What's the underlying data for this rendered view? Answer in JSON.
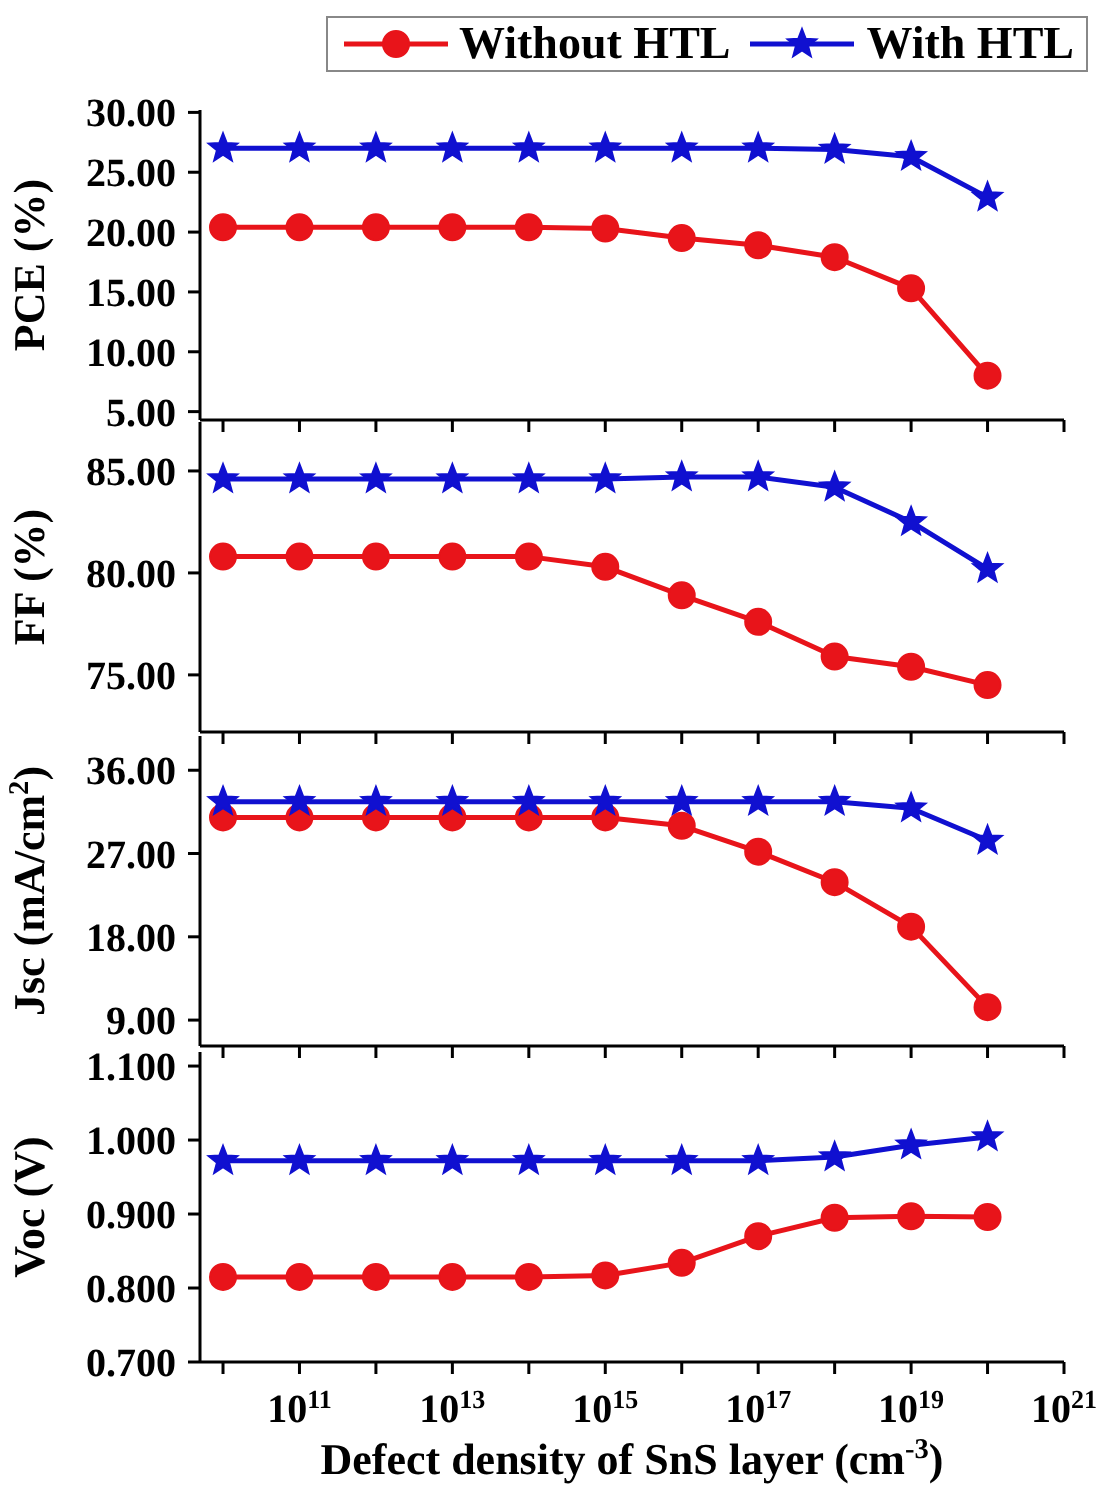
{
  "chart_data": [
    {
      "type": "line",
      "ylabel": "PCE (%)",
      "legend": "top",
      "log": "x",
      "tick_labels": "y",
      "x": [
        10000000000.0,
        100000000000.0,
        1000000000000.0,
        10000000000000.0,
        100000000000000.0,
        1000000000000000.0,
        1e+16,
        1e+17,
        1e+18,
        1e+19,
        1e+20
      ],
      "xlim": [
        5000000000.0,
        1e+21
      ],
      "xticks": [
        10000000000.0,
        100000000000.0,
        1000000000000.0,
        10000000000000.0,
        100000000000000.0,
        1000000000000000.0,
        1e+16,
        1e+17,
        1e+18,
        1e+19,
        1e+20,
        1e+21
      ],
      "ylim": [
        4.3,
        30.2
      ],
      "yticks": [
        {
          "value": 5,
          "label": "5.00"
        },
        {
          "value": 10,
          "label": "10.00"
        },
        {
          "value": 15,
          "label": "15.00"
        },
        {
          "value": 20,
          "label": "20.00"
        },
        {
          "value": 25,
          "label": "25.00"
        },
        {
          "value": 30,
          "label": "30.00"
        }
      ],
      "series": [
        {
          "name": "Without HTL",
          "color": "#e8141a",
          "marker": "circle",
          "values": [
            20.4,
            20.4,
            20.4,
            20.4,
            20.4,
            20.3,
            19.5,
            18.9,
            17.9,
            15.3,
            8.0
          ]
        },
        {
          "name": "With HTL",
          "color": "#1010d0",
          "marker": "star",
          "values": [
            27.0,
            27.0,
            27.0,
            27.0,
            27.0,
            27.0,
            27.0,
            27.0,
            26.9,
            26.3,
            22.9
          ]
        }
      ]
    },
    {
      "type": "line",
      "ylabel": "FF (%)",
      "log": "x",
      "tick_labels": "y",
      "x": [
        10000000000.0,
        100000000000.0,
        1000000000000.0,
        10000000000000.0,
        100000000000000.0,
        1000000000000000.0,
        1e+16,
        1e+17,
        1e+18,
        1e+19,
        1e+20
      ],
      "xlim": [
        5000000000.0,
        1e+21
      ],
      "xticks": [
        10000000000.0,
        100000000000.0,
        1000000000000.0,
        10000000000000.0,
        100000000000000.0,
        1000000000000000.0,
        1e+16,
        1e+17,
        1e+18,
        1e+19,
        1e+20,
        1e+21
      ],
      "ylim": [
        72.2,
        87.4
      ],
      "yticks": [
        {
          "value": 75,
          "label": "75.00"
        },
        {
          "value": 80,
          "label": "80.00"
        },
        {
          "value": 85,
          "label": "85.00"
        }
      ],
      "series": [
        {
          "color": "#e8141a",
          "marker": "circle",
          "values": [
            80.8,
            80.8,
            80.8,
            80.8,
            80.8,
            80.3,
            78.9,
            77.6,
            75.9,
            75.4,
            74.5
          ]
        },
        {
          "color": "#1010d0",
          "marker": "star",
          "values": [
            84.6,
            84.6,
            84.6,
            84.6,
            84.6,
            84.6,
            84.7,
            84.7,
            84.2,
            82.5,
            80.2
          ]
        }
      ]
    },
    {
      "type": "line",
      "ylabel": "Jsc (mA/cm$^{2}$)",
      "log": "x",
      "tick_labels": "y",
      "x": [
        10000000000.0,
        100000000000.0,
        1000000000000.0,
        10000000000000.0,
        100000000000000.0,
        1000000000000000.0,
        1e+16,
        1e+17,
        1e+18,
        1e+19,
        1e+20
      ],
      "xlim": [
        5000000000.0,
        1e+21
      ],
      "xticks": [
        10000000000.0,
        100000000000.0,
        1000000000000.0,
        10000000000000.0,
        100000000000000.0,
        1000000000000000.0,
        1e+16,
        1e+17,
        1e+18,
        1e+19,
        1e+20,
        1e+21
      ],
      "ylim": [
        6.2,
        39.7
      ],
      "yticks": [
        {
          "value": 9,
          "label": "9.00"
        },
        {
          "value": 18,
          "label": "18.00"
        },
        {
          "value": 27,
          "label": "27.00"
        },
        {
          "value": 36,
          "label": "36.00"
        }
      ],
      "series": [
        {
          "color": "#e8141a",
          "marker": "circle",
          "values": [
            30.9,
            30.9,
            30.9,
            30.9,
            30.9,
            30.9,
            30.0,
            27.2,
            23.9,
            19.1,
            10.4
          ]
        },
        {
          "color": "#1010d0",
          "marker": "star",
          "values": [
            32.6,
            32.6,
            32.6,
            32.6,
            32.6,
            32.6,
            32.6,
            32.6,
            32.6,
            31.9,
            28.4
          ]
        }
      ]
    },
    {
      "type": "line",
      "ylabel": "Voc (V)",
      "xlabel": "Defect density of SnS layer (cm$^{-3}$)",
      "log": "x",
      "x": [
        10000000000.0,
        100000000000.0,
        1000000000000.0,
        10000000000000.0,
        100000000000000.0,
        1000000000000000.0,
        1e+16,
        1e+17,
        1e+18,
        1e+19,
        1e+20
      ],
      "xlim": [
        5000000000.0,
        1e+21
      ],
      "xticks": [
        {
          "value": 10000000000.0,
          "label": null
        },
        {
          "value": 100000000000.0,
          "label": "10$^{11}$"
        },
        {
          "value": 1000000000000.0,
          "label": null
        },
        {
          "value": 10000000000000.0,
          "label": "10$^{13}$"
        },
        {
          "value": 100000000000000.0,
          "label": null
        },
        {
          "value": 1000000000000000.0,
          "label": "10$^{15}$"
        },
        {
          "value": 1e+16,
          "label": null
        },
        {
          "value": 1e+17,
          "label": "10$^{17}$"
        },
        {
          "value": 1e+18,
          "label": null
        },
        {
          "value": 1e+19,
          "label": "10$^{19}$"
        },
        {
          "value": 1e+20,
          "label": null
        },
        {
          "value": 1e+21,
          "label": "10$^{21}$"
        }
      ],
      "ylim": [
        0.7,
        1.119
      ],
      "yticks": [
        {
          "value": 0.7,
          "label": "0.700"
        },
        {
          "value": 0.8,
          "label": "0.800"
        },
        {
          "value": 0.9,
          "label": "0.900"
        },
        {
          "value": 1.0,
          "label": "1.000"
        },
        {
          "value": 1.1,
          "label": "1.100"
        }
      ],
      "series": [
        {
          "color": "#e8141a",
          "marker": "circle",
          "values": [
            0.815,
            0.815,
            0.815,
            0.815,
            0.815,
            0.817,
            0.834,
            0.87,
            0.895,
            0.897,
            0.896
          ]
        },
        {
          "color": "#1010d0",
          "marker": "star",
          "values": [
            0.972,
            0.972,
            0.972,
            0.972,
            0.972,
            0.972,
            0.972,
            0.972,
            0.977,
            0.993,
            1.004
          ]
        }
      ]
    }
  ]
}
